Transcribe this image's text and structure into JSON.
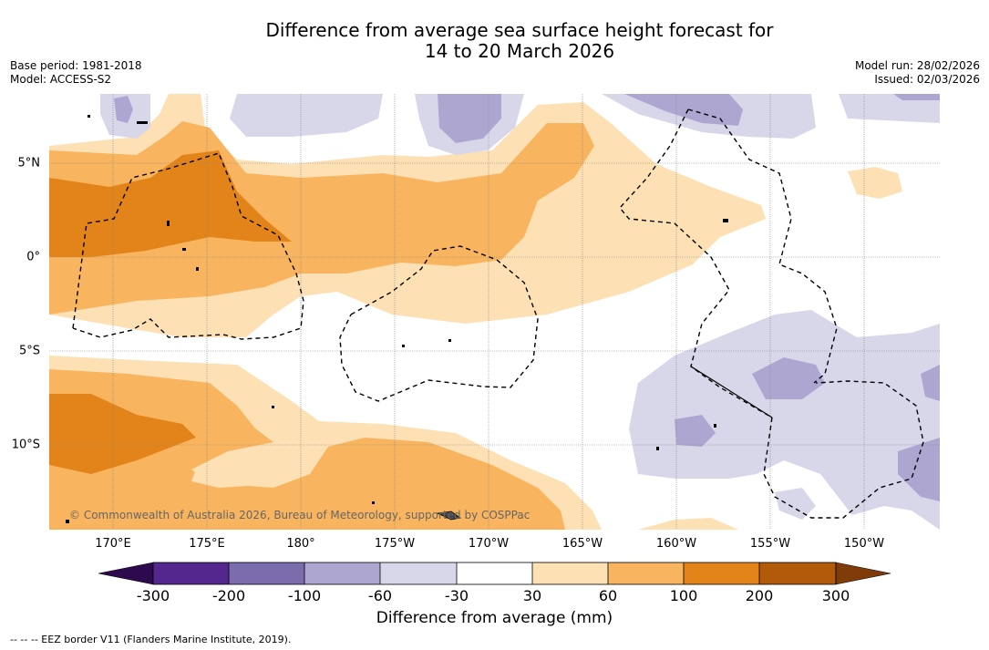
{
  "title": {
    "line1": "Difference from average sea surface height forecast for",
    "line2": "14 to 20 March 2026"
  },
  "meta": {
    "base_period": "Base period: 1981-2018",
    "model": "Model: ACCESS-S2",
    "model_run": "Model run: 28/02/2026",
    "issued": "Issued: 02/03/2026"
  },
  "map": {
    "longitude_labels": [
      "170°E",
      "175°E",
      "180°",
      "175°W",
      "170°W",
      "165°W",
      "160°W",
      "155°W",
      "150°W"
    ],
    "latitude_labels": [
      "5°N",
      "0°",
      "5°S",
      "10°S"
    ],
    "copyright": "© Commonwealth of Australia 2026, Bureau of Meteorology, supported by COSPPac"
  },
  "colorbar": {
    "ticks": [
      "-300",
      "-200",
      "-100",
      "-60",
      "-30",
      "30",
      "60",
      "100",
      "200",
      "300"
    ],
    "colors": {
      "under": "#2d0a4e",
      "n300_n200": "#54278f",
      "n200_n100": "#7b6cae",
      "n100_n60": "#ada6d1",
      "n60_n30": "#d8d7ea",
      "n30_30": "#ffffff",
      "p30_60": "#fde0b3",
      "p60_100": "#f9b45f",
      "p100_200": "#e28419",
      "p200_300": "#b25a0a",
      "over": "#7f3b08"
    },
    "label": "Difference from average (mm)"
  },
  "legend_note": "--  --  -- EEZ border V11 (Flanders Marine Institute, 2019)."
}
